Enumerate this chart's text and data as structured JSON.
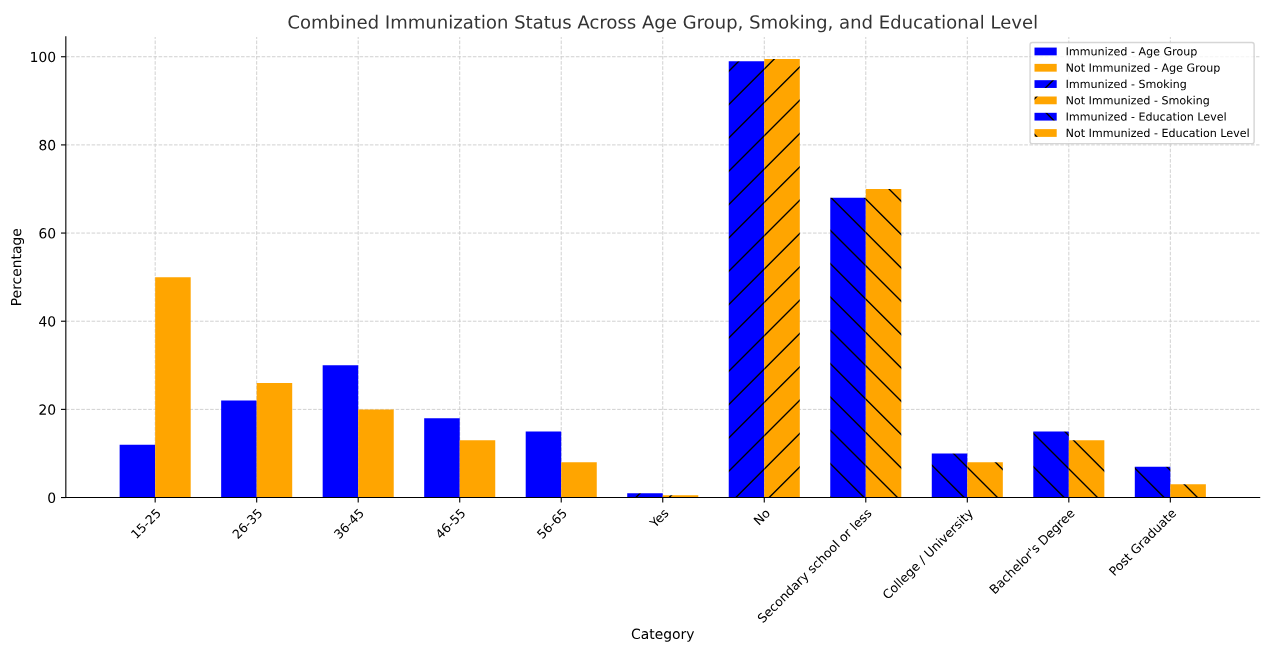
{
  "chart_data": {
    "type": "bar",
    "title": "Combined Immunization Status Across Age Group, Smoking, and Educational Level",
    "xlabel": "Category",
    "ylabel": "Percentage",
    "categories": [
      "15-25",
      "26-35",
      "36-45",
      "46-55",
      "56-65",
      "Yes",
      "No",
      "Secondary school or less",
      "College / University",
      "Bachelor's Degree",
      "Post Graduate"
    ],
    "series": [
      {
        "name": "Immunized - Age Group",
        "color": "#0000ff",
        "values": [
          12,
          22,
          30,
          18,
          15,
          null,
          null,
          null,
          null,
          null,
          null
        ]
      },
      {
        "name": "Not Immunized - Age Group",
        "color": "#ffa500",
        "values": [
          50,
          26,
          20,
          13,
          8,
          null,
          null,
          null,
          null,
          null,
          null
        ]
      },
      {
        "name": "Immunized - Smoking",
        "color": "#0000ff",
        "values": [
          null,
          null,
          null,
          null,
          null,
          1,
          99,
          null,
          null,
          null,
          null
        ]
      },
      {
        "name": "Not Immunized - Smoking",
        "color": "#ffa500",
        "values": [
          null,
          null,
          null,
          null,
          null,
          0.5,
          99.5,
          null,
          null,
          null,
          null
        ]
      },
      {
        "name": "Immunized - Education Level",
        "color": "#0000ff",
        "values": [
          null,
          null,
          null,
          null,
          null,
          null,
          null,
          68,
          10,
          15,
          7
        ]
      },
      {
        "name": "Not Immunized - Education Level",
        "color": "#ffa500",
        "values": [
          null,
          null,
          null,
          null,
          null,
          null,
          null,
          70,
          8,
          13,
          3
        ]
      }
    ],
    "ylim": [
      0,
      104.5
    ],
    "yticks": [
      0,
      20,
      40,
      60,
      80,
      100
    ],
    "grid": true,
    "legend": "top right"
  }
}
